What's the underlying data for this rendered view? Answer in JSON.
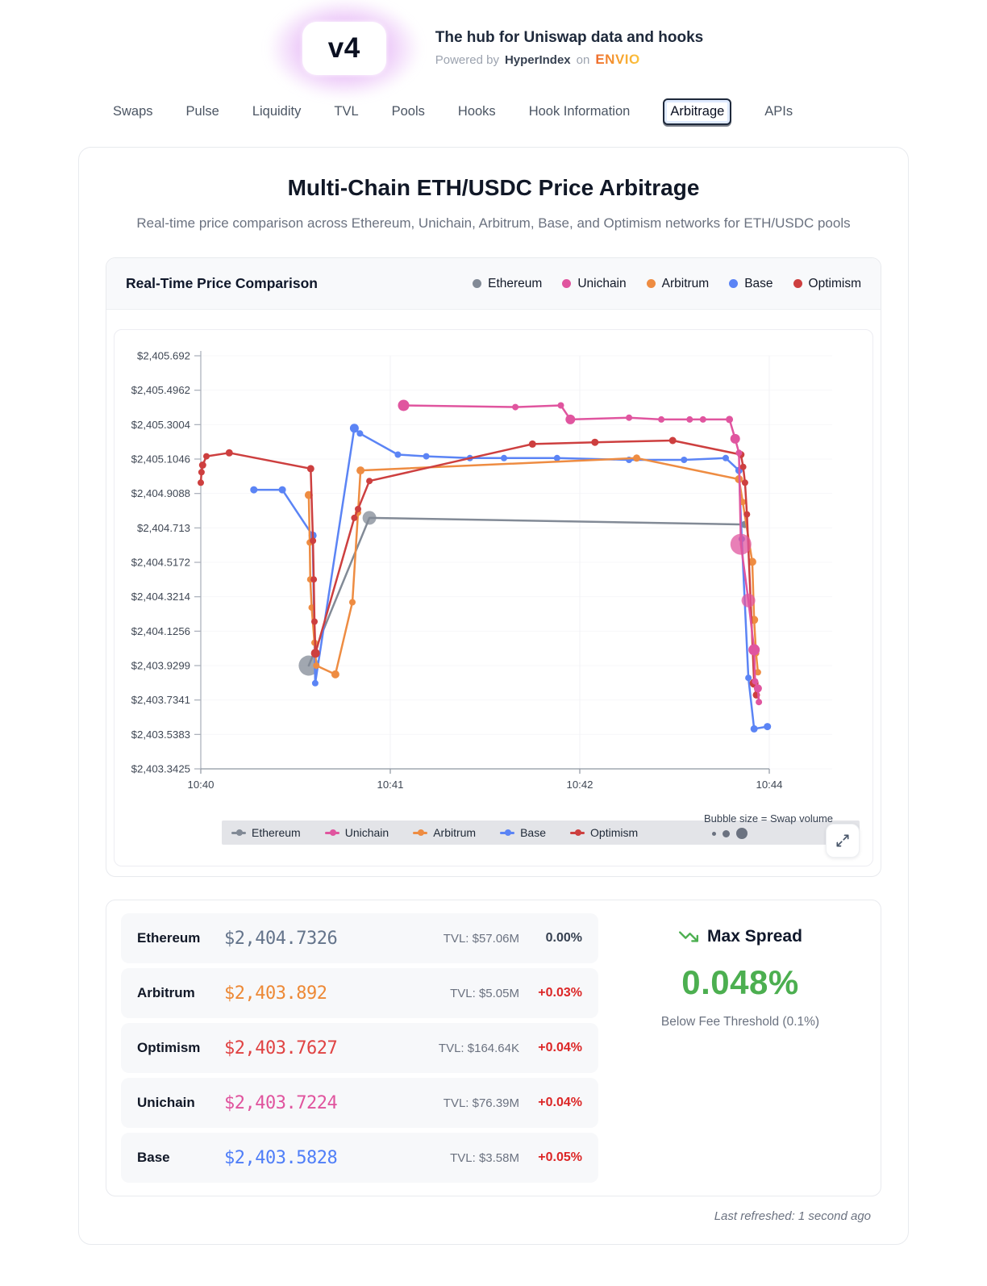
{
  "header": {
    "logo": "v4",
    "title": "The hub for Uniswap data and hooks",
    "powered_prefix": "Powered by",
    "powered_brand": "HyperIndex",
    "powered_conj": "on",
    "powered_platform": "ENVIO"
  },
  "nav": {
    "items": [
      {
        "label": "Swaps",
        "active": false
      },
      {
        "label": "Pulse",
        "active": false
      },
      {
        "label": "Liquidity",
        "active": false
      },
      {
        "label": "TVL",
        "active": false
      },
      {
        "label": "Pools",
        "active": false
      },
      {
        "label": "Hooks",
        "active": false
      },
      {
        "label": "Hook Information",
        "active": false
      },
      {
        "label": "Arbitrage",
        "active": true
      },
      {
        "label": "APIs",
        "active": false
      }
    ]
  },
  "page": {
    "title": "Multi-Chain ETH/USDC Price Arbitrage",
    "subtitle": "Real-time price comparison across Ethereum, Unichain, Arbitrum, Base, and Optimism networks for ETH/USDC pools"
  },
  "chart_data": {
    "type": "line",
    "title": "Real-Time Price Comparison",
    "bubble_note": "Bubble size = Swap volume",
    "legend_position": "top-right and bottom",
    "grid": true,
    "y_range": [
      2403.3425,
      2405.692
    ],
    "y_ticks": [
      {
        "label": "$2,405.692",
        "value": 2405.692
      },
      {
        "label": "$2,405.4962",
        "value": 2405.4962
      },
      {
        "label": "$2,405.3004",
        "value": 2405.3004
      },
      {
        "label": "$2,405.1046",
        "value": 2405.1046
      },
      {
        "label": "$2,404.9088",
        "value": 2404.9088
      },
      {
        "label": "$2,404.713",
        "value": 2404.713
      },
      {
        "label": "$2,404.5172",
        "value": 2404.5172
      },
      {
        "label": "$2,404.3214",
        "value": 2404.3214
      },
      {
        "label": "$2,404.1256",
        "value": 2404.1256
      },
      {
        "label": "$2,403.9299",
        "value": 2403.9299
      },
      {
        "label": "$2,403.7341",
        "value": 2403.7341
      },
      {
        "label": "$2,403.5383",
        "value": 2403.5383
      },
      {
        "label": "$2,403.3425",
        "value": 2403.3425
      }
    ],
    "x_ticks": [
      {
        "pos": 0,
        "label": "10:40"
      },
      {
        "pos": 1,
        "label": "10:41"
      },
      {
        "pos": 2,
        "label": "10:42"
      },
      {
        "pos": 3,
        "label": "10:44"
      }
    ],
    "bubble_demo_sizes": [
      5,
      9,
      14
    ],
    "series": [
      {
        "name": "Ethereum",
        "color": "#828a96",
        "points": [
          [
            0.57,
            2403.93,
            12.5
          ],
          [
            0.89,
            2404.77,
            8.5
          ],
          [
            2.87,
            2404.7326,
            4.5
          ]
        ]
      },
      {
        "name": "Unichain",
        "color": "#e0559f",
        "points": [
          [
            1.07,
            2405.41,
            7
          ],
          [
            1.66,
            2405.4,
            4
          ],
          [
            1.9,
            2405.41,
            4
          ],
          [
            1.95,
            2405.33,
            6
          ],
          [
            2.26,
            2405.34,
            4
          ],
          [
            2.43,
            2405.33,
            4
          ],
          [
            2.58,
            2405.33,
            4
          ],
          [
            2.65,
            2405.33,
            4
          ],
          [
            2.79,
            2405.33,
            4.5
          ],
          [
            2.82,
            2405.22,
            6
          ],
          [
            2.84,
            2405.14,
            4
          ],
          [
            2.85,
            2404.62,
            13
          ],
          [
            2.89,
            2404.3,
            8.5
          ],
          [
            2.92,
            2404.02,
            7
          ],
          [
            2.925,
            2403.84,
            4
          ],
          [
            2.94,
            2403.8,
            5
          ],
          [
            2.945,
            2403.7224,
            4
          ]
        ]
      },
      {
        "name": "Arbitrum",
        "color": "#ee8c42",
        "points": [
          [
            0.57,
            2404.9,
            5
          ],
          [
            0.575,
            2404.63,
            4
          ],
          [
            0.578,
            2404.42,
            4
          ],
          [
            0.585,
            2404.26,
            4
          ],
          [
            0.6,
            2404.06,
            4
          ],
          [
            0.61,
            2403.93,
            4
          ],
          [
            0.71,
            2403.88,
            5
          ],
          [
            0.8,
            2404.29,
            4
          ],
          [
            0.83,
            2404.8,
            4
          ],
          [
            0.843,
            2405.04,
            5
          ],
          [
            2.3,
            2405.11,
            4.5
          ],
          [
            2.84,
            2404.99,
            5
          ],
          [
            2.86,
            2404.86,
            4
          ],
          [
            2.91,
            2404.52,
            5
          ],
          [
            2.92,
            2404.19,
            5
          ],
          [
            2.93,
            2404.0,
            4
          ],
          [
            2.94,
            2403.892,
            4
          ]
        ]
      },
      {
        "name": "Base",
        "color": "#5b84f5",
        "points": [
          [
            0.28,
            2404.93,
            4.5
          ],
          [
            0.43,
            2404.93,
            4.5
          ],
          [
            0.59,
            2404.67,
            5
          ],
          [
            0.604,
            2403.83,
            4
          ],
          [
            0.81,
            2405.28,
            5.5
          ],
          [
            0.84,
            2405.25,
            4
          ],
          [
            1.04,
            2405.13,
            4
          ],
          [
            1.19,
            2405.12,
            4
          ],
          [
            1.42,
            2405.11,
            4
          ],
          [
            1.6,
            2405.11,
            4
          ],
          [
            1.88,
            2405.11,
            4
          ],
          [
            2.26,
            2405.1,
            4
          ],
          [
            2.55,
            2405.1,
            4
          ],
          [
            2.77,
            2405.11,
            4
          ],
          [
            2.84,
            2405.04,
            4.5
          ],
          [
            2.855,
            2404.65,
            4
          ],
          [
            2.89,
            2403.86,
            4
          ],
          [
            2.92,
            2403.57,
            4.5
          ],
          [
            2.99,
            2403.5828,
            4.5
          ]
        ]
      },
      {
        "name": "Optimism",
        "color": "#cd3f3f",
        "points": [
          [
            0,
            2404.97,
            4
          ],
          [
            0.004,
            2405.03,
            4
          ],
          [
            0.01,
            2405.07,
            4.5
          ],
          [
            0.03,
            2405.12,
            4
          ],
          [
            0.15,
            2405.14,
            4.5
          ],
          [
            0.58,
            2405.05,
            4.5
          ],
          [
            0.592,
            2404.64,
            4
          ],
          [
            0.596,
            2404.42,
            4
          ],
          [
            0.6,
            2404.18,
            4
          ],
          [
            0.605,
            2404.0,
            5.5
          ],
          [
            0.81,
            2404.77,
            4
          ],
          [
            0.83,
            2404.82,
            4
          ],
          [
            0.89,
            2404.98,
            4
          ],
          [
            1.75,
            2405.19,
            4.5
          ],
          [
            2.08,
            2405.2,
            4.5
          ],
          [
            2.49,
            2405.21,
            4.5
          ],
          [
            2.85,
            2405.13,
            4.5
          ],
          [
            2.862,
            2405.06,
            4
          ],
          [
            2.872,
            2404.97,
            4
          ],
          [
            2.882,
            2404.79,
            4
          ],
          [
            2.92,
            2403.83,
            5.5
          ],
          [
            2.932,
            2403.7627,
            4.5
          ]
        ]
      }
    ]
  },
  "stats": {
    "rows": [
      {
        "name": "Ethereum",
        "price": "$2,404.7326",
        "tvl": "TVL: $57.06M",
        "pct": "0.00%",
        "price_color": "#64748b",
        "pct_color": "#374151"
      },
      {
        "name": "Arbitrum",
        "price": "$2,403.892",
        "tvl": "TVL: $5.05M",
        "pct": "+0.03%",
        "price_color": "#ed8936",
        "pct_color": "#dc2626"
      },
      {
        "name": "Optimism",
        "price": "$2,403.7627",
        "tvl": "TVL: $164.64K",
        "pct": "+0.04%",
        "price_color": "#e04343",
        "pct_color": "#dc2626"
      },
      {
        "name": "Unichain",
        "price": "$2,403.7224",
        "tvl": "TVL: $76.39M",
        "pct": "+0.04%",
        "price_color": "#e0549e",
        "pct_color": "#dc2626"
      },
      {
        "name": "Base",
        "price": "$2,403.5828",
        "tvl": "TVL: $3.58M",
        "pct": "+0.05%",
        "price_color": "#4f7ef8",
        "pct_color": "#dc2626"
      }
    ]
  },
  "max_spread": {
    "title": "Max Spread",
    "value": "0.048%",
    "caption": "Below Fee Threshold (0.1%)",
    "accent": "#4caf50"
  },
  "footer": {
    "refreshed": "Last refreshed: 1 second ago"
  }
}
